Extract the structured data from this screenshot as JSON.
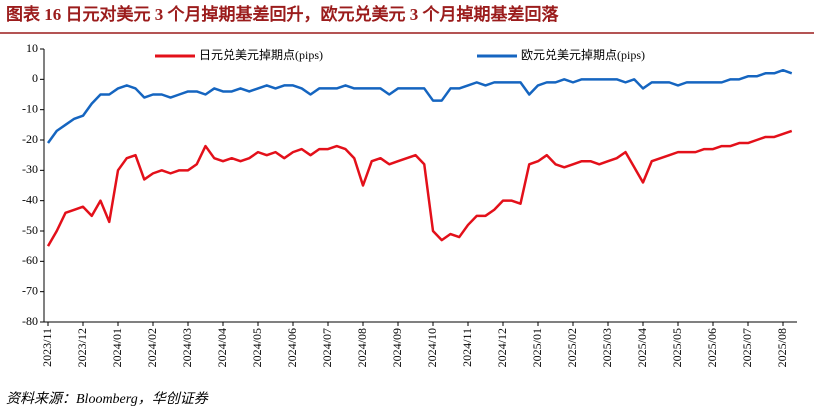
{
  "chart_data": {
    "type": "line",
    "title": "图表 16    日元对美元 3 个月掉期基差回升，欧元兑美元 3 个月掉期基差回落",
    "source": "资料来源：Bloomberg，华创证券",
    "categories": [
      "2023/11",
      null,
      null,
      null,
      "2023/12",
      null,
      null,
      null,
      "2024/01",
      null,
      null,
      null,
      "2024/02",
      null,
      null,
      null,
      "2024/03",
      null,
      null,
      null,
      "2024/04",
      null,
      null,
      null,
      "2024/05",
      null,
      null,
      null,
      "2024/06",
      null,
      null,
      null,
      "2024/07",
      null,
      null,
      null,
      "2024/08",
      null,
      null,
      null,
      "2024/09",
      null,
      null,
      null,
      "2024/10",
      null,
      null,
      null,
      "2024/11",
      null,
      null,
      null,
      "2024/12",
      null,
      null,
      null,
      "2025/01",
      null,
      null,
      null,
      "2025/02",
      null,
      null,
      null,
      "2025/03",
      null,
      null,
      null,
      "2025/04",
      null,
      null,
      null,
      "2025/05",
      null,
      null,
      null,
      "2025/06",
      null,
      null,
      null,
      "2025/07",
      null,
      null,
      null,
      "2025/08",
      null
    ],
    "series": [
      {
        "name": "日元兑美元掉期点(pips)",
        "color": "#e3101a",
        "values": [
          -55,
          -50,
          -44,
          -43,
          -42,
          -45,
          -40,
          -47,
          -30,
          -26,
          -25,
          -33,
          -31,
          -30,
          -31,
          -30,
          -30,
          -28,
          -22,
          -26,
          -27,
          -26,
          -27,
          -26,
          -24,
          -25,
          -24,
          -26,
          -24,
          -23,
          -25,
          -23,
          -23,
          -22,
          -23,
          -26,
          -35,
          -27,
          -26,
          -28,
          -27,
          -26,
          -25,
          -28,
          -50,
          -53,
          -51,
          -52,
          -48,
          -45,
          -45,
          -43,
          -40,
          -40,
          -41,
          -28,
          -27,
          -25,
          -28,
          -29,
          -28,
          -27,
          -27,
          -28,
          -27,
          -26,
          -24,
          -29,
          -34,
          -27,
          -26,
          -25,
          -24,
          -24,
          -24,
          -23,
          -23,
          -22,
          -22,
          -21,
          -21,
          -20,
          -19,
          -19,
          -18,
          -17
        ]
      },
      {
        "name": "欧元兑美元掉期点(pips)",
        "color": "#1565c0",
        "values": [
          -21,
          -17,
          -15,
          -13,
          -12,
          -8,
          -5,
          -5,
          -3,
          -2,
          -3,
          -6,
          -5,
          -5,
          -6,
          -5,
          -4,
          -4,
          -5,
          -3,
          -4,
          -4,
          -3,
          -4,
          -3,
          -2,
          -3,
          -2,
          -2,
          -3,
          -5,
          -3,
          -3,
          -3,
          -2,
          -3,
          -3,
          -3,
          -3,
          -5,
          -3,
          -3,
          -3,
          -3,
          -7,
          -7,
          -3,
          -3,
          -2,
          -1,
          -2,
          -1,
          -1,
          -1,
          -1,
          -5,
          -2,
          -1,
          -1,
          0,
          -1,
          0,
          0,
          0,
          0,
          0,
          -1,
          0,
          -3,
          -1,
          -1,
          -1,
          -2,
          -1,
          -1,
          -1,
          -1,
          -1,
          0,
          0,
          1,
          1,
          2,
          2,
          3,
          2
        ]
      }
    ],
    "ylim": [
      -80,
      10
    ],
    "yticks": [
      -80,
      -70,
      -60,
      -50,
      -40,
      -30,
      -20,
      -10,
      0,
      10
    ],
    "legend": "top",
    "grid": false
  }
}
